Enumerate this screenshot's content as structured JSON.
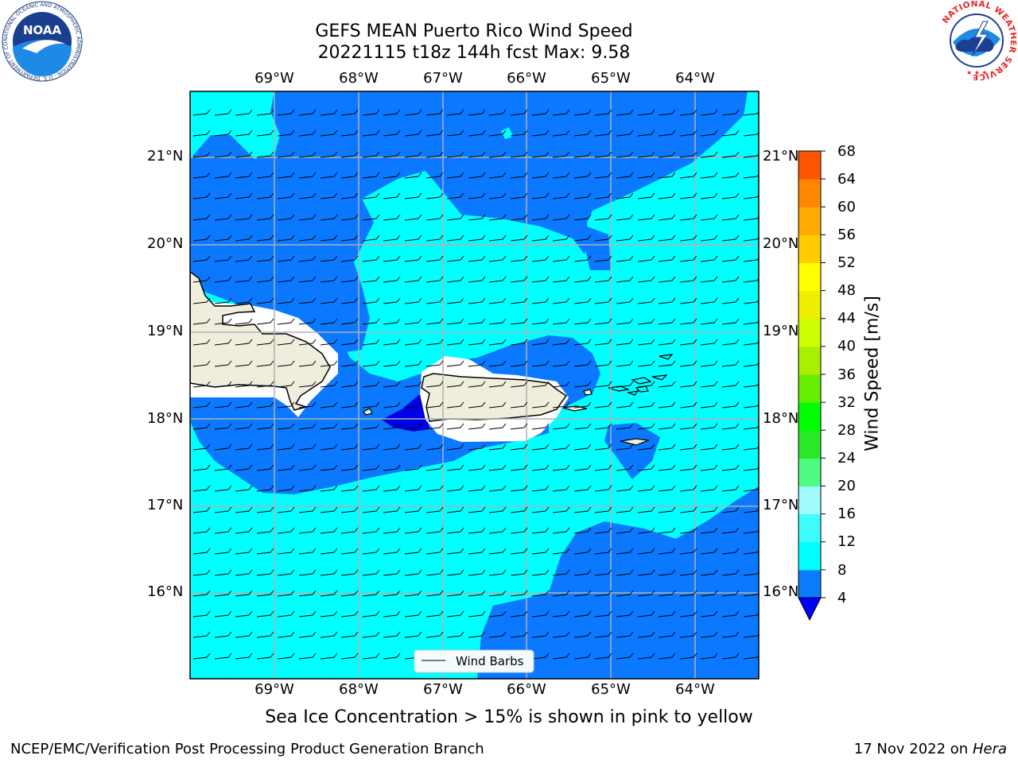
{
  "header": {
    "title_line1": "GEFS MEAN Puerto Rico Wind Speed",
    "title_line2": "20221115 t18z 144h fcst   Max: 9.58"
  },
  "map": {
    "lon_labels": [
      "69°W",
      "68°W",
      "67°W",
      "66°W",
      "65°W",
      "64°W"
    ],
    "lat_labels": [
      "21°N",
      "20°N",
      "19°N",
      "18°N",
      "17°N",
      "16°N"
    ],
    "colors": {
      "speed_4_8": "#0a79ff",
      "speed_8_12": "#00ffff",
      "speed_below_4": "#0000e6",
      "land": "#efeddc",
      "gridline": "#b0b0b0"
    }
  },
  "colorbar": {
    "label": "Wind Speed [m/s]",
    "ticks": [
      "68",
      "64",
      "60",
      "56",
      "52",
      "48",
      "44",
      "40",
      "36",
      "32",
      "28",
      "24",
      "20",
      "16",
      "12",
      "8",
      "4"
    ],
    "colors": [
      "#0a7dff",
      "#00ffff",
      "#3ffcfc",
      "#a0fcfc",
      "#4dfc80",
      "#28e828",
      "#00ff00",
      "#66ee00",
      "#aaee00",
      "#ccff00",
      "#eeee00",
      "#ffff00",
      "#ffcc00",
      "#ffaa00",
      "#ff8800",
      "#ff5500",
      "#ff2a00",
      "#ff0000"
    ],
    "under_color": "#0000ff"
  },
  "legend": {
    "label": "Wind Barbs"
  },
  "footer": {
    "note": "Sea Ice Concentration > 15% is shown in pink to yellow",
    "credit": "NCEP/EMC/Verification Post Processing Product Generation Branch",
    "date": "17 Nov 2022 on",
    "machine": "Hera"
  },
  "logos": {
    "noaa_text": "NOAA",
    "noaa_ring_text": "NATIONAL OCEANIC AND ATMOSPHERIC ADMINISTRATION · U.S. DEPARTMENT OF COMMERCE",
    "nws_ring_text": "NATIONAL WEATHER SERVICE"
  }
}
